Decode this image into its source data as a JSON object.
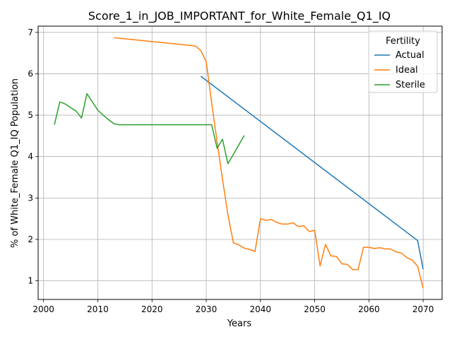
{
  "chart_data": {
    "type": "line",
    "title": "Score_1_in_JOB_IMPORTANT_for_White_Female_Q1_IQ",
    "xlabel": "Years",
    "ylabel": "% of White_Female Q1_IQ Population",
    "xlim": [
      1999,
      2073.5
    ],
    "ylim": [
      0.55,
      7.15
    ],
    "xticks": [
      2000,
      2010,
      2020,
      2030,
      2040,
      2050,
      2060,
      2070
    ],
    "yticks": [
      1,
      2,
      3,
      4,
      5,
      6,
      7
    ],
    "grid": true,
    "legend": {
      "title": "Fertility",
      "position": "top-right"
    },
    "series": [
      {
        "name": "Actual",
        "color": "#1f77b4",
        "x": [
          2029,
          2069,
          2070
        ],
        "y": [
          5.94,
          1.97,
          1.28
        ]
      },
      {
        "name": "Ideal",
        "color": "#ff7f0e",
        "x": [
          2013,
          2028,
          2029,
          2030,
          2031,
          2032,
          2033,
          2034,
          2035,
          2036,
          2037,
          2038,
          2039,
          2040,
          2041,
          2042,
          2043,
          2044,
          2045,
          2046,
          2047,
          2048,
          2049,
          2050,
          2051,
          2052,
          2053,
          2054,
          2055,
          2056,
          2057,
          2058,
          2059,
          2060,
          2061,
          2062,
          2063,
          2064,
          2065,
          2066,
          2067,
          2068,
          2069,
          2070
        ],
        "y": [
          6.87,
          6.67,
          6.56,
          6.29,
          5.3,
          4.36,
          3.46,
          2.6,
          1.92,
          1.87,
          1.79,
          1.76,
          1.71,
          2.5,
          2.46,
          2.48,
          2.41,
          2.37,
          2.37,
          2.4,
          2.31,
          2.33,
          2.19,
          2.22,
          1.36,
          1.88,
          1.6,
          1.59,
          1.41,
          1.4,
          1.27,
          1.27,
          1.81,
          1.81,
          1.78,
          1.8,
          1.77,
          1.77,
          1.7,
          1.67,
          1.56,
          1.5,
          1.35,
          0.82
        ]
      },
      {
        "name": "Sterile",
        "color": "#2ca02c",
        "x": [
          2002,
          2003,
          2004,
          2005,
          2006,
          2007,
          2008,
          2009,
          2010,
          2011,
          2012,
          2013,
          2014,
          2015,
          2031,
          2032,
          2033,
          2034,
          2035,
          2036,
          2037
        ],
        "y": [
          4.77,
          5.32,
          5.27,
          5.18,
          5.1,
          4.93,
          5.52,
          5.32,
          5.12,
          5.0,
          4.89,
          4.79,
          4.77,
          4.77,
          4.77,
          4.2,
          4.42,
          3.83,
          4.05,
          4.28,
          4.51
        ]
      }
    ]
  }
}
